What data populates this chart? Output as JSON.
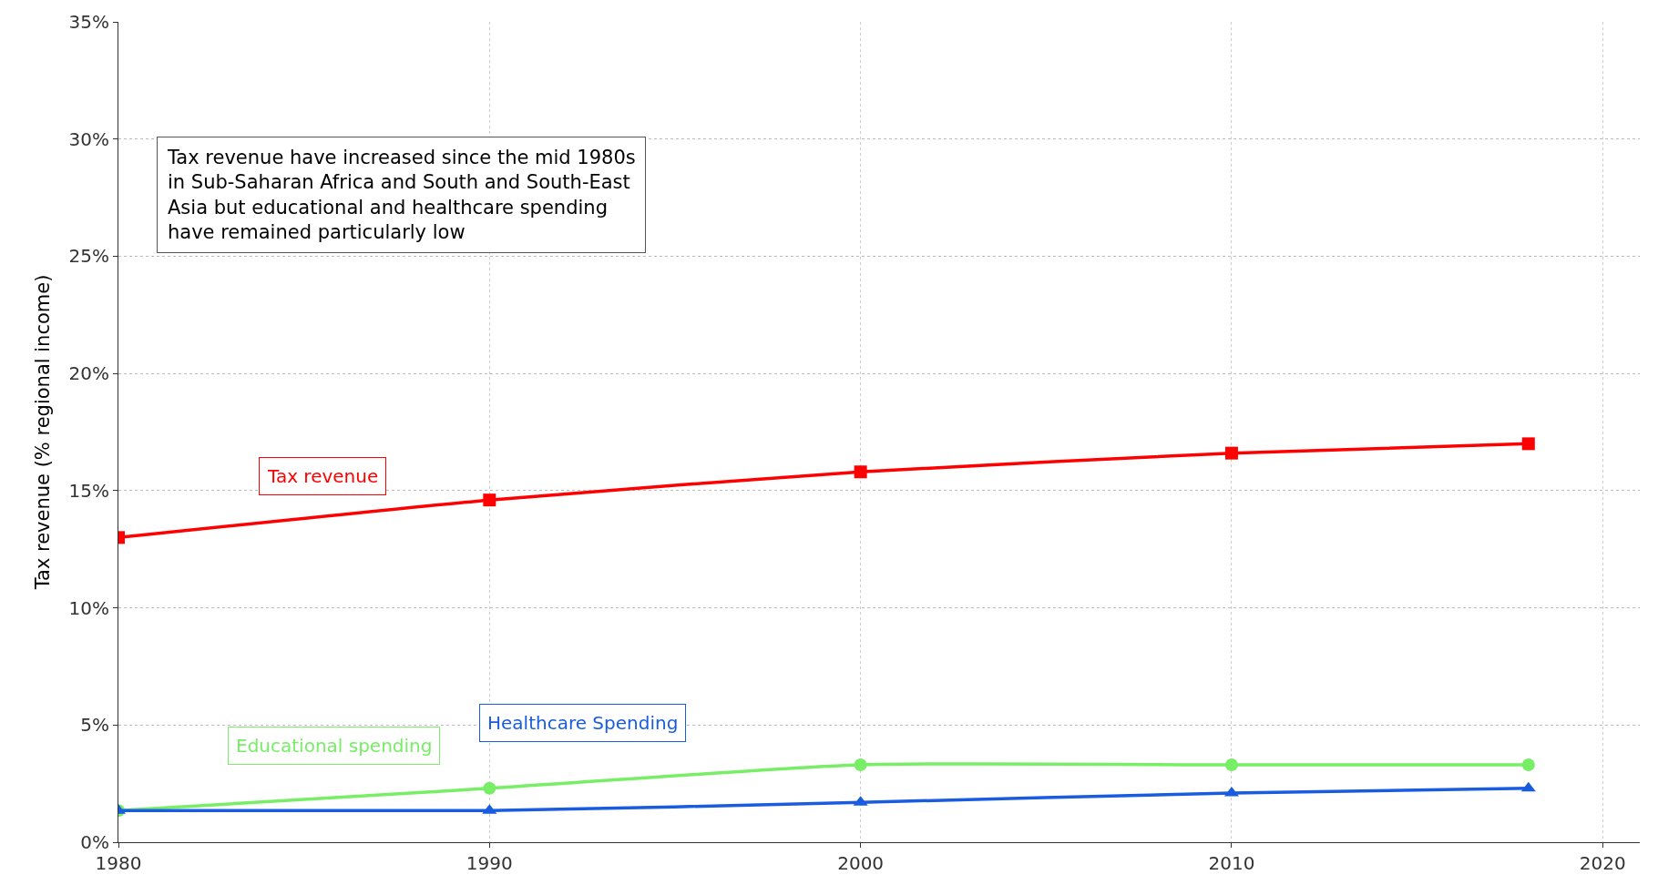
{
  "chart_data": {
    "type": "line",
    "ylabel": "Tax revenue (% regional income)",
    "x": [
      1980,
      1990,
      2000,
      2010,
      2018
    ],
    "series": [
      {
        "name": "Tax revenue",
        "color": "#ff0000",
        "marker": "square",
        "values": [
          13.0,
          14.6,
          15.8,
          16.6,
          17.0
        ]
      },
      {
        "name": "Educational spending",
        "color": "#77ee66",
        "marker": "circle",
        "values": [
          1.35,
          2.3,
          3.3,
          3.3,
          3.3
        ]
      },
      {
        "name": "Healthcare Spending",
        "color": "#1a5ce0",
        "marker": "triangle",
        "values": [
          1.35,
          1.35,
          1.7,
          2.1,
          2.3
        ]
      }
    ],
    "xlim": [
      1980,
      2021
    ],
    "xticks": [
      1980,
      1990,
      2000,
      2010,
      2020
    ],
    "ylim": [
      0,
      35
    ],
    "yticks": [
      {
        "value": 0,
        "label": "0%"
      },
      {
        "value": 5,
        "label": "5%"
      },
      {
        "value": 10,
        "label": "10%"
      },
      {
        "value": 15,
        "label": "15%"
      },
      {
        "value": 20,
        "label": "20%"
      },
      {
        "value": 25,
        "label": "25%"
      },
      {
        "value": 30,
        "label": "30%"
      },
      {
        "value": 35,
        "label": "35%"
      }
    ],
    "grid": true,
    "legend": false,
    "line_style": "solid",
    "annotations": [
      "Tax revenue have increased since the mid 1980s\nin Sub-Saharan Africa and South and South-East\nAsia but educational and healthcare spending\nhave remained particularly low"
    ]
  }
}
